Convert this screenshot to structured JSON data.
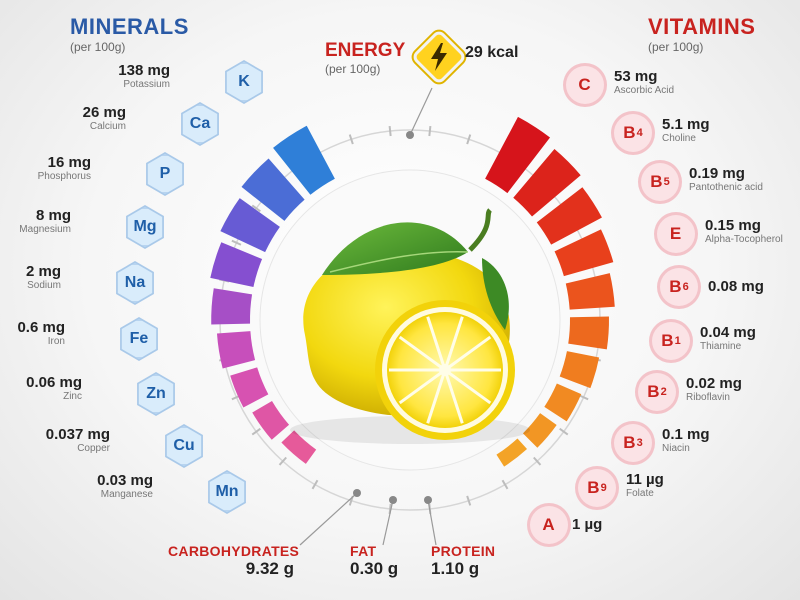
{
  "minerals": {
    "title": "MINERALS",
    "per": "(per 100g)",
    "items": [
      {
        "symbol": "K",
        "value": "138 mg",
        "name": "Potassium"
      },
      {
        "symbol": "Ca",
        "value": "26 mg",
        "name": "Calcium"
      },
      {
        "symbol": "P",
        "value": "16 mg",
        "name": "Phosphorus"
      },
      {
        "symbol": "Mg",
        "value": "8 mg",
        "name": "Magnesium"
      },
      {
        "symbol": "Na",
        "value": "2 mg",
        "name": "Sodium"
      },
      {
        "symbol": "Fe",
        "value": "0.6 mg",
        "name": "Iron"
      },
      {
        "symbol": "Zn",
        "value": "0.06 mg",
        "name": "Zinc"
      },
      {
        "symbol": "Cu",
        "value": "0.037 mg",
        "name": "Copper"
      },
      {
        "symbol": "Mn",
        "value": "0.03 mg",
        "name": "Manganese"
      }
    ]
  },
  "vitamins": {
    "title": "VITAMINS",
    "per": "(per 100g)",
    "items": [
      {
        "letter": "C",
        "sub": "",
        "value": "53 mg",
        "name": "Ascorbic Acid"
      },
      {
        "letter": "B",
        "sub": "4",
        "value": "5.1 mg",
        "name": "Choline"
      },
      {
        "letter": "B",
        "sub": "5",
        "value": "0.19 mg",
        "name": "Pantothenic acid"
      },
      {
        "letter": "E",
        "sub": "",
        "value": "0.15 mg",
        "name": "Alpha-Tocopherol"
      },
      {
        "letter": "B",
        "sub": "6",
        "value": "0.08 mg",
        "name": ""
      },
      {
        "letter": "B",
        "sub": "1",
        "value": "0.04 mg",
        "name": "Thiamine"
      },
      {
        "letter": "B",
        "sub": "2",
        "value": "0.02 mg",
        "name": "Riboflavin"
      },
      {
        "letter": "B",
        "sub": "3",
        "value": "0.1 mg",
        "name": "Niacin"
      },
      {
        "letter": "B",
        "sub": "9",
        "value": "11 µg",
        "name": "Folate"
      },
      {
        "letter": "A",
        "sub": "",
        "value": "1 µg",
        "name": ""
      }
    ]
  },
  "energy": {
    "label": "ENERGY",
    "per": "(per 100g)",
    "value": "29 kcal",
    "icon": "lightning-bolt-icon"
  },
  "macros": [
    {
      "label": "CARBOHYDRATES",
      "value": "9.32 g"
    },
    {
      "label": "FAT",
      "value": "0.30 g"
    },
    {
      "label": "PROTEIN",
      "value": "1.10 g"
    }
  ],
  "colors": {
    "minerals_title": "#2a5aa6",
    "vitamins_title": "#c8231f",
    "mineral_bar_gradient": [
      "#2f7fd8",
      "#7a4fd3",
      "#d24fb8",
      "#e65a9a"
    ],
    "vitamin_bar_gradient": [
      "#d6141b",
      "#e8401c",
      "#f07d1f",
      "#f3a327"
    ]
  },
  "illustration": "lemon-icon"
}
